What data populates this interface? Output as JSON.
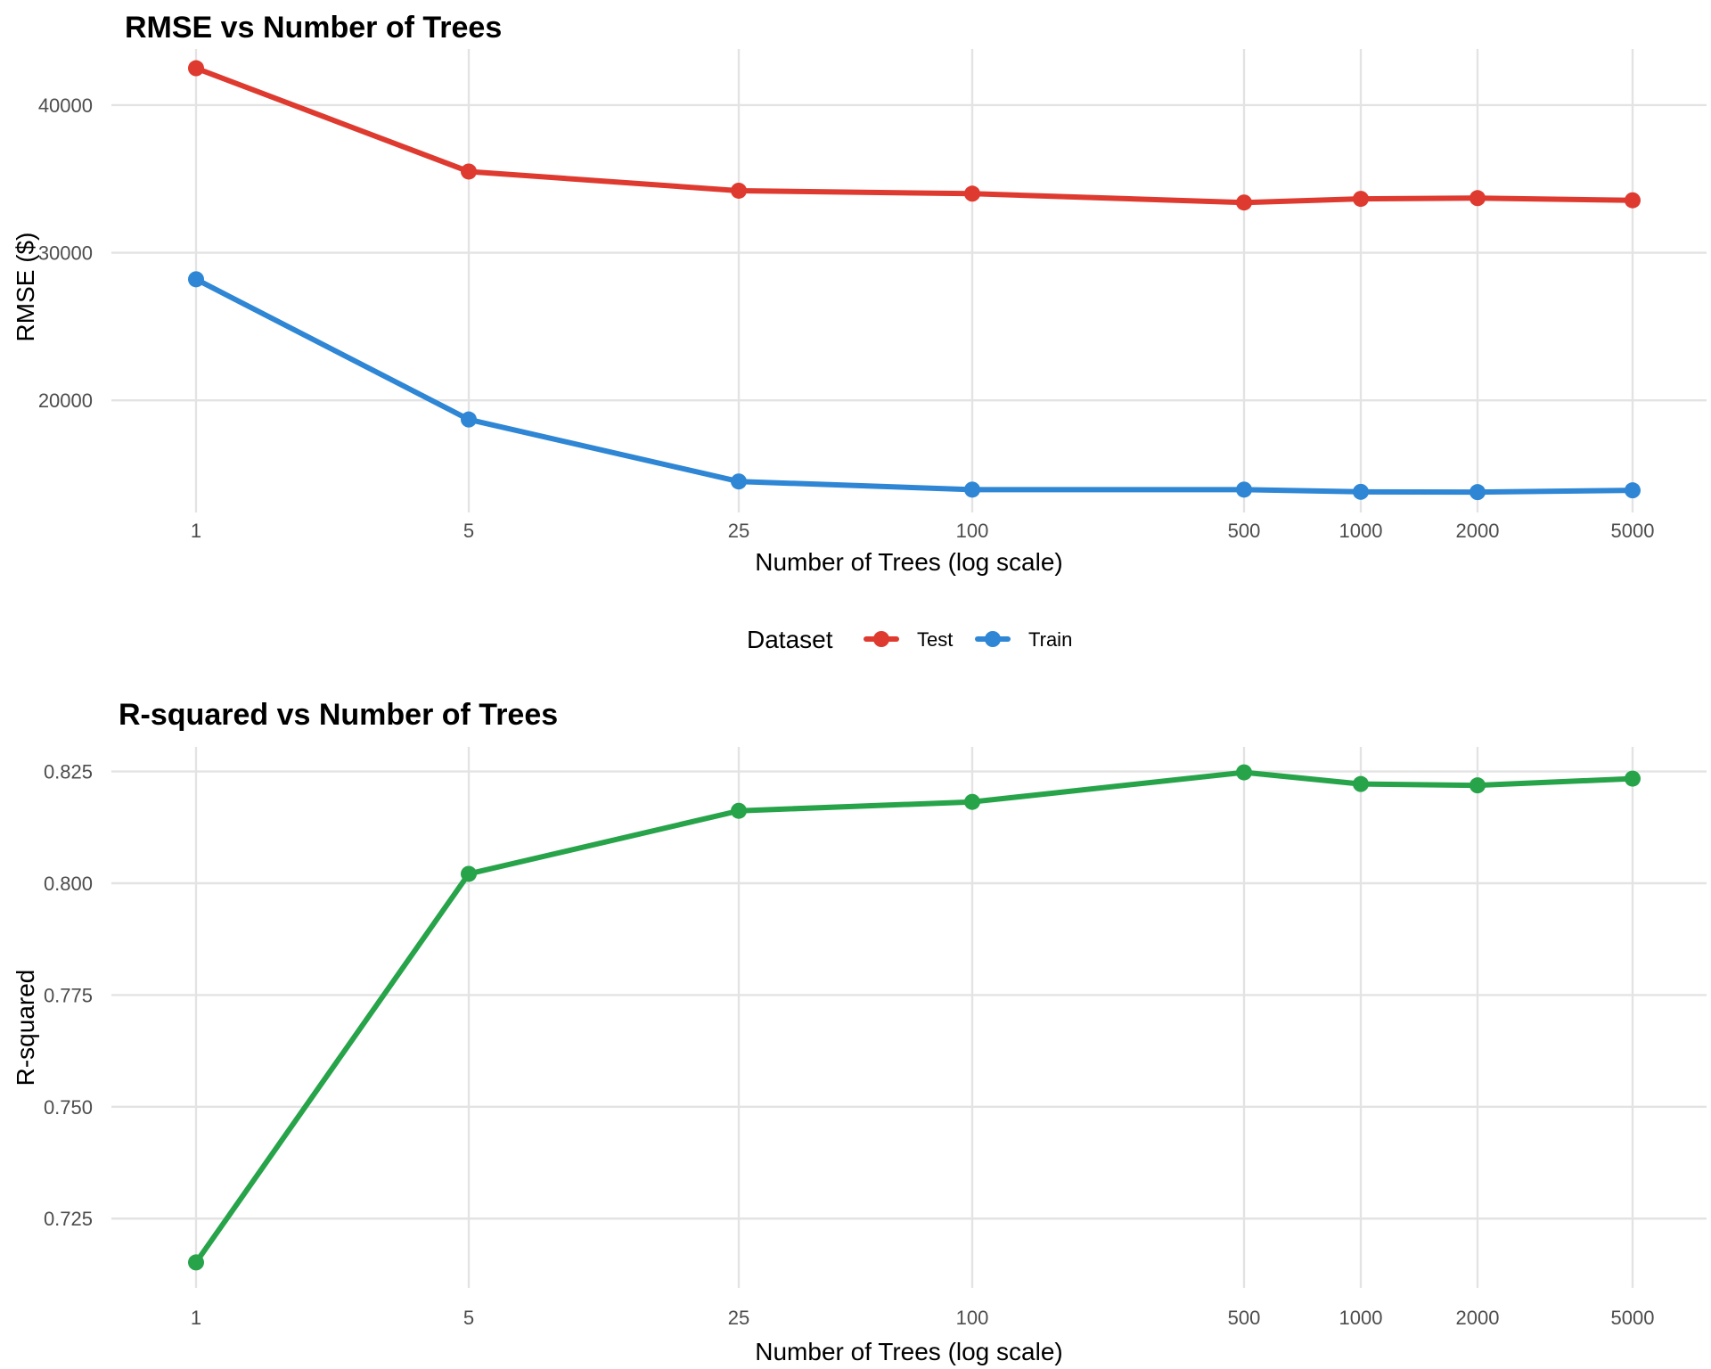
{
  "chart_data": [
    {
      "type": "line",
      "title": "RMSE vs Number of Trees",
      "xlabel": "Number of Trees (log scale)",
      "ylabel": "RMSE ($)",
      "x_scale": "log",
      "x": [
        1,
        5,
        25,
        100,
        500,
        1000,
        2000,
        5000
      ],
      "x_tick_labels": [
        "1",
        "5",
        "25",
        "100",
        "500",
        "1000",
        "2000",
        "5000"
      ],
      "y_ticks": [
        20000,
        30000,
        40000
      ],
      "y_tick_labels": [
        "20000",
        "30000",
        "40000"
      ],
      "ylim": [
        12400,
        43800
      ],
      "grid": true,
      "series": [
        {
          "name": "Test",
          "color": "#de3a2f",
          "values": [
            42500,
            35500,
            34200,
            34000,
            33400,
            33650,
            33700,
            33550
          ]
        },
        {
          "name": "Train",
          "color": "#2e86d4",
          "values": [
            28200,
            18700,
            14500,
            13950,
            13950,
            13800,
            13780,
            13900
          ]
        }
      ]
    },
    {
      "type": "line",
      "title": "R-squared vs Number of Trees",
      "xlabel": "Number of Trees (log scale)",
      "ylabel": "R-squared",
      "x_scale": "log",
      "x": [
        1,
        5,
        25,
        100,
        500,
        1000,
        2000,
        5000
      ],
      "x_tick_labels": [
        "1",
        "5",
        "25",
        "100",
        "500",
        "1000",
        "2000",
        "5000"
      ],
      "y_ticks": [
        0.725,
        0.75,
        0.775,
        0.8,
        0.825
      ],
      "y_tick_labels": [
        "0.725",
        "0.750",
        "0.775",
        "0.800",
        "0.825"
      ],
      "ylim": [
        0.7095,
        0.8305
      ],
      "grid": true,
      "series": [
        {
          "color": "#27a34a",
          "values": [
            0.7152,
            0.8021,
            0.8162,
            0.8182,
            0.8248,
            0.8222,
            0.8219,
            0.8234
          ]
        }
      ]
    }
  ],
  "legend": {
    "title": "Dataset",
    "placement": "between panels, centered",
    "items": [
      {
        "label": "Test",
        "color": "#de3a2f"
      },
      {
        "label": "Train",
        "color": "#2e86d4"
      }
    ]
  }
}
